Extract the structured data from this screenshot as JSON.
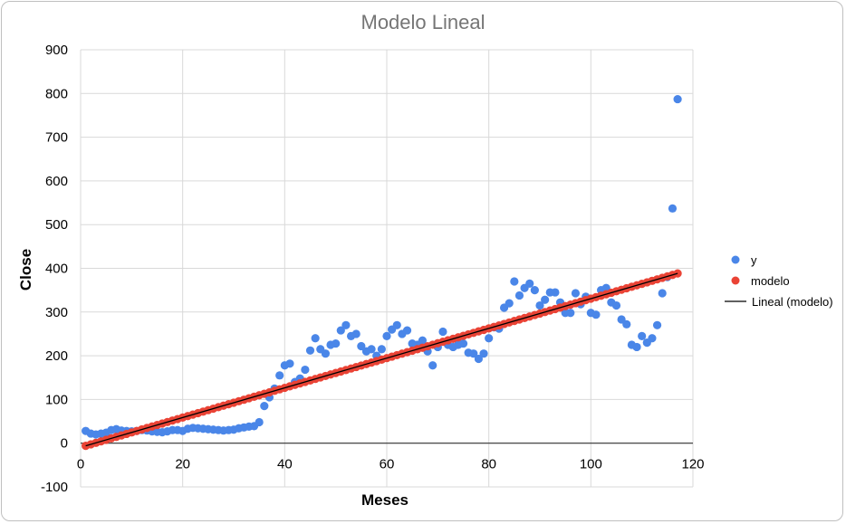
{
  "chart_data": {
    "type": "scatter",
    "title": "Modelo Lineal",
    "xlabel": "Meses",
    "ylabel": "Close",
    "xlim": [
      0,
      120
    ],
    "ylim": [
      -100,
      900
    ],
    "xticks": [
      0,
      20,
      40,
      60,
      80,
      100,
      120
    ],
    "yticks": [
      -100,
      0,
      100,
      200,
      300,
      400,
      500,
      600,
      700,
      800,
      900
    ],
    "grid": true,
    "legend_position": "right",
    "series": [
      {
        "name": "y",
        "kind": "points",
        "color": "#4a86e8",
        "x": [
          1,
          2,
          3,
          4,
          5,
          6,
          7,
          8,
          9,
          10,
          11,
          12,
          13,
          14,
          15,
          16,
          17,
          18,
          19,
          20,
          21,
          22,
          23,
          24,
          25,
          26,
          27,
          28,
          29,
          30,
          31,
          32,
          33,
          34,
          35,
          36,
          37,
          38,
          39,
          40,
          41,
          42,
          43,
          44,
          45,
          46,
          47,
          48,
          49,
          50,
          51,
          52,
          53,
          54,
          55,
          56,
          57,
          58,
          59,
          60,
          61,
          62,
          63,
          64,
          65,
          66,
          67,
          68,
          69,
          70,
          71,
          72,
          73,
          74,
          75,
          76,
          77,
          78,
          79,
          80,
          81,
          82,
          83,
          84,
          85,
          86,
          87,
          88,
          89,
          90,
          91,
          92,
          93,
          94,
          95,
          96,
          97,
          98,
          99,
          100,
          101,
          102,
          103,
          104,
          105,
          106,
          107,
          108,
          109,
          110,
          111,
          112,
          113,
          114,
          115,
          116,
          117
        ],
        "y": [
          28,
          22,
          20,
          22,
          24,
          30,
          32,
          29,
          28,
          27,
          28,
          30,
          29,
          27,
          26,
          25,
          27,
          30,
          30,
          28,
          33,
          35,
          34,
          33,
          32,
          31,
          30,
          29,
          30,
          31,
          34,
          36,
          38,
          39,
          48,
          85,
          105,
          125,
          155,
          178,
          182,
          140,
          148,
          168,
          212,
          240,
          215,
          205,
          225,
          228,
          258,
          270,
          245,
          250,
          222,
          210,
          215,
          200,
          215,
          245,
          260,
          270,
          250,
          258,
          228,
          225,
          235,
          210,
          178,
          220,
          255,
          225,
          220,
          225,
          228,
          207,
          205,
          193,
          205,
          240,
          265,
          262,
          310,
          320,
          370,
          338,
          355,
          365,
          350,
          315,
          328,
          345,
          345,
          322,
          298,
          298,
          343,
          318,
          335,
          298,
          294,
          350,
          355,
          322,
          315,
          283,
          272,
          225,
          220,
          245,
          230,
          240,
          270,
          343,
          380,
          537,
          787
        ]
      },
      {
        "name": "modelo",
        "kind": "points",
        "color": "#ea4335",
        "x": [
          1,
          2,
          3,
          4,
          5,
          6,
          7,
          8,
          9,
          10,
          11,
          12,
          13,
          14,
          15,
          16,
          17,
          18,
          19,
          20,
          21,
          22,
          23,
          24,
          25,
          26,
          27,
          28,
          29,
          30,
          31,
          32,
          33,
          34,
          35,
          36,
          37,
          38,
          39,
          40,
          41,
          42,
          43,
          44,
          45,
          46,
          47,
          48,
          49,
          50,
          51,
          52,
          53,
          54,
          55,
          56,
          57,
          58,
          59,
          60,
          61,
          62,
          63,
          64,
          65,
          66,
          67,
          68,
          69,
          70,
          71,
          72,
          73,
          74,
          75,
          76,
          77,
          78,
          79,
          80,
          81,
          82,
          83,
          84,
          85,
          86,
          87,
          88,
          89,
          90,
          91,
          92,
          93,
          94,
          95,
          96,
          97,
          98,
          99,
          100,
          101,
          102,
          103,
          104,
          105,
          106,
          107,
          108,
          109,
          110,
          111,
          112,
          113,
          114,
          115,
          116,
          117
        ],
        "y": [
          -6,
          -2.6,
          0.8,
          4.2,
          7.6,
          11,
          14.4,
          17.8,
          21.2,
          24.6,
          28,
          31.4,
          34.8,
          38.2,
          41.6,
          45,
          48.4,
          51.8,
          55.2,
          58.6,
          62,
          65.4,
          68.8,
          72.2,
          75.6,
          79,
          82.4,
          85.8,
          89.2,
          92.6,
          96,
          99.4,
          102.8,
          106.2,
          109.6,
          113,
          116.4,
          119.8,
          123.2,
          126.6,
          130,
          133.4,
          136.8,
          140.2,
          143.6,
          147,
          150.4,
          153.8,
          157.2,
          160.6,
          164,
          167.4,
          170.8,
          174.2,
          177.6,
          181,
          184.4,
          187.8,
          191.2,
          194.6,
          198,
          201.4,
          204.8,
          208.2,
          211.6,
          215,
          218.4,
          221.8,
          225.2,
          228.6,
          232,
          235.4,
          238.8,
          242.2,
          245.6,
          249,
          252.4,
          255.8,
          259.2,
          262.6,
          266,
          269.4,
          272.8,
          276.2,
          279.6,
          283,
          286.4,
          289.8,
          293.2,
          296.6,
          300,
          303.4,
          306.8,
          310.2,
          313.6,
          317,
          320.4,
          323.8,
          327.2,
          330.6,
          334,
          337.4,
          340.8,
          344.2,
          347.6,
          351,
          354.4,
          357.8,
          361.2,
          364.6,
          368,
          371.4,
          374.8,
          378.2,
          381.6,
          385,
          388.4
        ]
      },
      {
        "name": "Lineal (modelo)",
        "kind": "trendline",
        "color": "#000000",
        "x": [
          1,
          117
        ],
        "y": [
          -6,
          388.4
        ]
      }
    ]
  }
}
